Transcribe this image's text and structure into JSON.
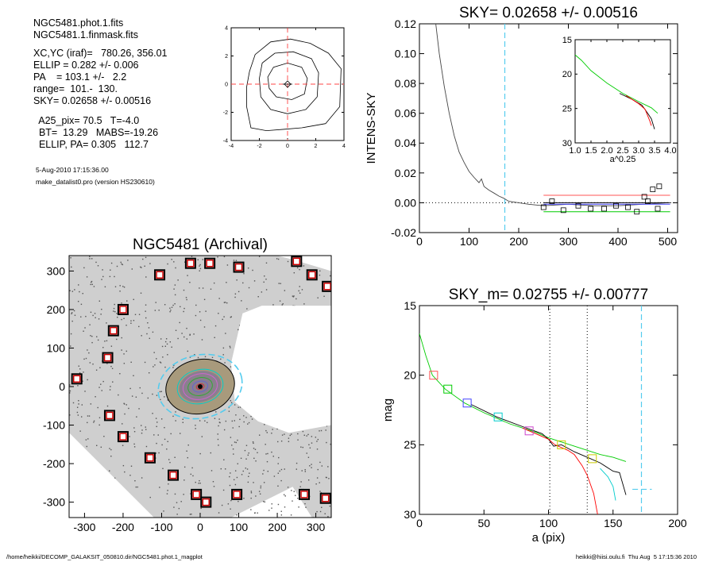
{
  "info": {
    "lines": [
      "NGC5481.phot.1.fits",
      "NGC5481.1.finmask.fits",
      "XC,YC (iraf)=   780.26, 356.01",
      "ELLIP = 0.282 +/- 0.006",
      "PA    = 103.1 +/-   2.2",
      "range=  101.-  130.",
      "SKY= 0.02658 +/- 0.00516",
      "  A25_pix= 70.5   T=-4.0",
      "  BT=  13.29   MABS=-19.26",
      "  ELLIP, PA= 0.305   112.7"
    ],
    "date": "5-Aug-2010 17:15:36.00",
    "program": "make_datalist0.pro (version HS230610)"
  },
  "footer": {
    "left": "/home/heikki/DECOMP_GALAKSIT_050810.dir/NGC5481.phot.1_magplot",
    "right": "heikki@hiisi.oulu.fi  Thu Aug  5 17:15:36 2010"
  },
  "chart_data": [
    {
      "id": "contour",
      "type": "contour",
      "xlim": [
        -4,
        4
      ],
      "ylim": [
        -4,
        4
      ],
      "xticks": [
        "-4",
        "-2",
        "0",
        "2",
        "4"
      ],
      "yticks": [
        "-4",
        "-2",
        "0",
        "2",
        "4"
      ],
      "contours": [
        [
          [
            -2.7,
            0.9
          ],
          [
            -2.3,
            2.1
          ],
          [
            -1.2,
            3.0
          ],
          [
            0.2,
            3.2
          ],
          [
            1.6,
            2.9
          ],
          [
            2.9,
            2.2
          ],
          [
            3.8,
            1.1
          ],
          [
            3.7,
            -1.6
          ],
          [
            2.7,
            -2.8
          ],
          [
            1.0,
            -3.1
          ],
          [
            -0.2,
            -3.2
          ],
          [
            -1.5,
            -3.3
          ],
          [
            -2.6,
            -3.1
          ],
          [
            -2.9,
            -1.6
          ],
          [
            -2.9,
            -0.2
          ]
        ],
        [
          [
            -2.0,
            0.4
          ],
          [
            -1.8,
            1.5
          ],
          [
            -0.9,
            2.2
          ],
          [
            0.4,
            2.3
          ],
          [
            1.7,
            1.8
          ],
          [
            2.2,
            0.8
          ],
          [
            2.1,
            -0.9
          ],
          [
            1.3,
            -1.8
          ],
          [
            0.0,
            -2.1
          ],
          [
            -1.2,
            -1.8
          ],
          [
            -1.9,
            -0.9
          ]
        ],
        [
          [
            -1.4,
            0.5
          ],
          [
            -1.0,
            1.2
          ],
          [
            0.0,
            1.5
          ],
          [
            1.0,
            1.2
          ],
          [
            1.4,
            0.4
          ],
          [
            1.2,
            -0.7
          ],
          [
            0.3,
            -1.1
          ],
          [
            -0.8,
            -0.9
          ],
          [
            -1.3,
            -0.3
          ]
        ]
      ]
    },
    {
      "id": "sky",
      "type": "line",
      "title": "SKY= 0.02658 +/- 0.00516",
      "ylabel": "INTENS-SKY",
      "xlim": [
        0,
        520
      ],
      "ylim": [
        -0.02,
        0.12
      ],
      "xticks": [
        "0",
        "100",
        "200",
        "300",
        "400",
        "500"
      ],
      "yticks": [
        "-0.02",
        "0.00",
        "0.02",
        "0.04",
        "0.06",
        "0.08",
        "0.10",
        "0.12"
      ],
      "profile": [
        [
          33,
          0.12
        ],
        [
          40,
          0.1
        ],
        [
          50,
          0.078
        ],
        [
          60,
          0.06
        ],
        [
          70,
          0.045
        ],
        [
          80,
          0.034
        ],
        [
          90,
          0.027
        ],
        [
          100,
          0.021
        ],
        [
          110,
          0.017
        ],
        [
          120,
          0.0135
        ],
        [
          125,
          0.016
        ],
        [
          130,
          0.011
        ],
        [
          140,
          0.0085
        ],
        [
          150,
          0.0065
        ],
        [
          160,
          0.0045
        ],
        [
          170,
          0.003
        ],
        [
          180,
          0.001
        ],
        [
          200,
          0.0
        ],
        [
          220,
          -0.001
        ],
        [
          250,
          -0.002
        ],
        [
          300,
          -0.001
        ],
        [
          350,
          -0.002
        ],
        [
          400,
          -0.002
        ],
        [
          450,
          -0.001
        ],
        [
          500,
          0.0
        ]
      ],
      "range_line_x": 172,
      "level_lines": [
        {
          "color": "#ff5555",
          "y": 0.005,
          "x": [
            250,
            505
          ]
        },
        {
          "color": "#000000",
          "y": 0.0,
          "x": [
            250,
            505
          ]
        },
        {
          "color": "#4444ff",
          "y": -0.001,
          "x": [
            250,
            505
          ]
        },
        {
          "color": "#00cc00",
          "y": -0.006,
          "x": [
            250,
            505
          ]
        }
      ],
      "squares": [
        [
          250,
          -0.003
        ],
        [
          267,
          0.001
        ],
        [
          290,
          -0.005
        ],
        [
          320,
          -0.002
        ],
        [
          345,
          -0.004
        ],
        [
          372,
          -0.004
        ],
        [
          396,
          -0.002
        ],
        [
          420,
          -0.003
        ],
        [
          438,
          -0.006
        ],
        [
          453,
          0.004
        ],
        [
          460,
          0.001
        ],
        [
          470,
          0.009
        ],
        [
          483,
          0.011
        ],
        [
          480,
          -0.004
        ]
      ],
      "inset": {
        "xlabel": "a^0.25",
        "xlim": [
          1.0,
          4.0
        ],
        "ylim": [
          15,
          30
        ],
        "xticks": [
          "1.0",
          "1.5",
          "2.0",
          "2.5",
          "3.0",
          "3.5",
          "4.0"
        ],
        "yticks": [
          "15",
          "20",
          "25",
          "30"
        ],
        "series": [
          {
            "color": "#00cc00",
            "points": [
              [
                1.0,
                17.2
              ],
              [
                1.2,
                18.0
              ],
              [
                1.5,
                19.5
              ],
              [
                2.0,
                21.3
              ],
              [
                2.5,
                22.8
              ],
              [
                3.0,
                24.0
              ],
              [
                3.4,
                24.9
              ],
              [
                3.6,
                25.7
              ]
            ]
          },
          {
            "color": "#000000",
            "points": [
              [
                2.4,
                22.8
              ],
              [
                2.8,
                23.7
              ],
              [
                3.1,
                24.5
              ],
              [
                3.3,
                25.8
              ],
              [
                3.4,
                26.5
              ],
              [
                3.5,
                28.0
              ]
            ]
          },
          {
            "color": "#ff0000",
            "points": [
              [
                2.6,
                23.1
              ],
              [
                3.0,
                24.3
              ],
              [
                3.2,
                25.1
              ],
              [
                3.35,
                26.8
              ],
              [
                3.4,
                27.5
              ]
            ]
          }
        ]
      }
    },
    {
      "id": "image",
      "type": "image",
      "title": "NGC5481 (Archival)",
      "xlim": [
        -340,
        340
      ],
      "ylim": [
        -340,
        340
      ],
      "xticks": [
        "-300",
        "-200",
        "-100",
        "0",
        "100",
        "200",
        "300"
      ],
      "yticks": [
        "-300",
        "-200",
        "-100",
        "0",
        "100",
        "200",
        "300"
      ],
      "markers": [
        [
          -320,
          20
        ],
        [
          -240,
          75
        ],
        [
          -225,
          145
        ],
        [
          -200,
          200
        ],
        [
          -200,
          -130
        ],
        [
          -235,
          -75
        ],
        [
          -130,
          -185
        ],
        [
          -70,
          -230
        ],
        [
          -105,
          290
        ],
        [
          -25,
          320
        ],
        [
          25,
          320
        ],
        [
          -10,
          -280
        ],
        [
          15,
          -300
        ],
        [
          95,
          -280
        ],
        [
          100,
          310
        ],
        [
          250,
          325
        ],
        [
          290,
          290
        ],
        [
          330,
          260
        ],
        [
          270,
          -280
        ],
        [
          325,
          -290
        ]
      ],
      "ellipses": [
        {
          "a": 90,
          "b": 70,
          "color": "#000000",
          "dash": false
        },
        {
          "a": 60,
          "b": 44,
          "color": "#00cccc",
          "dash": false
        },
        {
          "a": 45,
          "b": 33,
          "color": "#cc66cc",
          "dash": false
        },
        {
          "a": 32,
          "b": 23,
          "color": "#33aa33",
          "dash": false
        },
        {
          "a": 20,
          "b": 14,
          "color": "#6666cc",
          "dash": false
        },
        {
          "a": 10,
          "b": 7,
          "color": "#cc3333",
          "dash": false
        },
        {
          "a": 110,
          "b": 82,
          "color": "#55ccee",
          "dash": true
        }
      ]
    },
    {
      "id": "mag",
      "type": "line",
      "title": "SKY_m=  0.02755 +/- 0.00777",
      "xlabel": "a (pix)",
      "ylabel": "mag",
      "xlim": [
        0,
        200
      ],
      "ylim": [
        15,
        30
      ],
      "xticks": [
        "0",
        "50",
        "100",
        "150",
        "200"
      ],
      "yticks": [
        "15",
        "20",
        "25",
        "30"
      ],
      "vlines_dotted": [
        101,
        130
      ],
      "vline_dashed": 172,
      "sky_tick": {
        "x": [
          165,
          180
        ],
        "y": 28.2
      },
      "series": [
        {
          "color": "#00cc00",
          "points": [
            [
              0,
              17.0
            ],
            [
              5,
              18.6
            ],
            [
              10,
              20.0
            ],
            [
              20,
              21.0
            ],
            [
              35,
              22.0
            ],
            [
              50,
              22.7
            ],
            [
              70,
              23.5
            ],
            [
              90,
              24.1
            ],
            [
              100,
              24.5
            ],
            [
              110,
              24.8
            ],
            [
              120,
              25.1
            ],
            [
              130,
              25.4
            ],
            [
              140,
              25.7
            ],
            [
              150,
              25.9
            ],
            [
              160,
              26.2
            ]
          ]
        },
        {
          "color": "#000000",
          "points": [
            [
              40,
              22.1
            ],
            [
              60,
              23.0
            ],
            [
              80,
              23.7
            ],
            [
              95,
              24.2
            ],
            [
              100,
              24.6
            ],
            [
              104,
              25.1
            ],
            [
              110,
              25.0
            ],
            [
              120,
              25.5
            ],
            [
              130,
              25.9
            ],
            [
              140,
              26.3
            ],
            [
              150,
              26.9
            ],
            [
              155,
              27.0
            ],
            [
              160,
              28.6
            ]
          ]
        },
        {
          "color": "#ff0000",
          "points": [
            [
              80,
              23.8
            ],
            [
              100,
              24.6
            ],
            [
              105,
              25.0
            ],
            [
              115,
              25.4
            ],
            [
              120,
              25.7
            ],
            [
              126,
              26.5
            ],
            [
              130,
              27.2
            ],
            [
              135,
              28.5
            ],
            [
              138,
              30.0
            ]
          ]
        },
        {
          "color": "#00cccc",
          "points": [
            [
              140,
              26.7
            ],
            [
              146,
              27.3
            ],
            [
              150,
              28.0
            ],
            [
              152,
              29.0
            ]
          ]
        }
      ],
      "squares": [
        {
          "x": 11,
          "y": 20.0,
          "color": "#ff5555"
        },
        {
          "x": 22,
          "y": 21.0,
          "color": "#00cc00"
        },
        {
          "x": 37,
          "y": 22.0,
          "color": "#4444ff"
        },
        {
          "x": 61,
          "y": 23.0,
          "color": "#00cccc"
        },
        {
          "x": 85,
          "y": 24.0,
          "color": "#cc44cc"
        },
        {
          "x": 110,
          "y": 25.0,
          "color": "#cccc00"
        },
        {
          "x": 134,
          "y": 26.0,
          "color": "#cccc00"
        }
      ]
    }
  ]
}
